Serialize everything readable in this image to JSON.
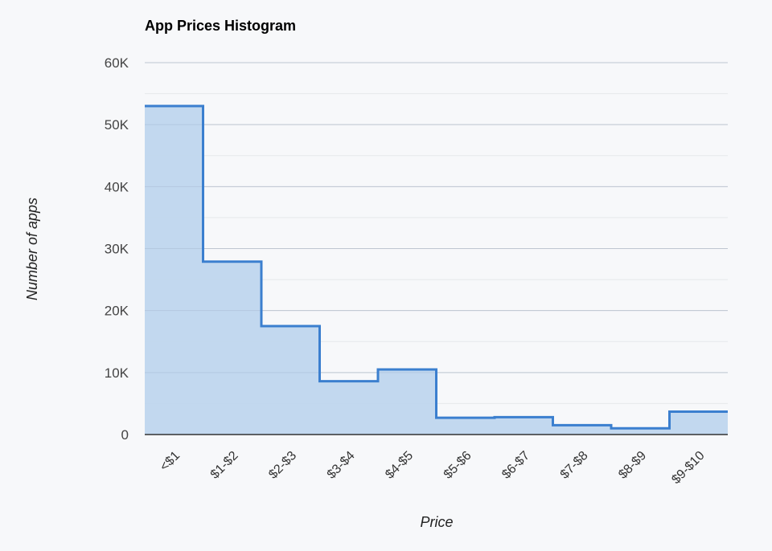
{
  "title": "App Prices Histogram",
  "colors": {
    "line": "#3b7fcf",
    "fill": "#bfd6ee",
    "grid_major": "#cfd2d6",
    "grid_minor": "#e6e8eb",
    "axis": "#333333",
    "background": "#f7f8fa"
  },
  "chart_data": {
    "type": "area",
    "subtype": "stepped-histogram",
    "title": "App Prices Histogram",
    "xlabel": "Price",
    "ylabel": "Number of apps",
    "categories": [
      "<$1",
      "$1-$2",
      "$2-$3",
      "$3-$4",
      "$4-$5",
      "$5-$6",
      "$6-$7",
      "$7-$8",
      "$8-$9",
      "$9-$10"
    ],
    "values": [
      53000,
      27900,
      17500,
      8600,
      10500,
      2700,
      2800,
      1500,
      1000,
      3700
    ],
    "ylim": [
      0,
      60000
    ],
    "yticks": [
      0,
      10000,
      20000,
      30000,
      40000,
      50000,
      60000
    ],
    "ytick_labels": [
      "0",
      "10K",
      "20K",
      "30K",
      "40K",
      "50K",
      "60K"
    ],
    "grid": true,
    "legend": "none"
  }
}
